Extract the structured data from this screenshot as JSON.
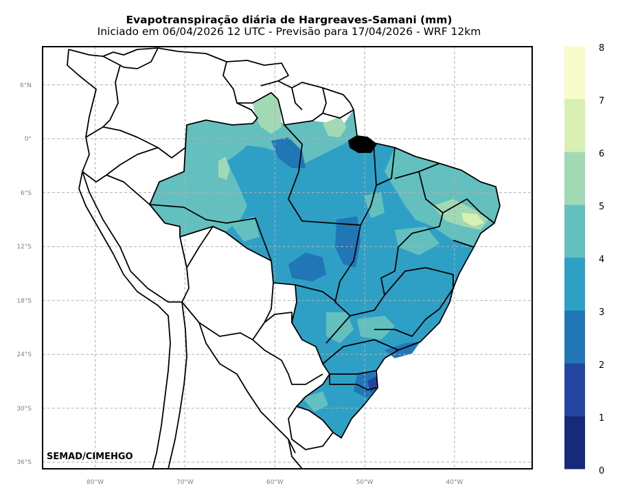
{
  "header": {
    "title": "Evapotranspiração diária de Hargreaves-Samani (mm)",
    "subtitle": "Iniciado em 06/04/2026 12 UTC - Previsão para 17/04/2026 - WRF 12km"
  },
  "map": {
    "lon_range": [
      -86,
      -31.5
    ],
    "lat_range": [
      -37,
      10
    ],
    "lon_ticks": [
      {
        "value": -80,
        "label": "80°W"
      },
      {
        "value": -70,
        "label": "70°W"
      },
      {
        "value": -60,
        "label": "60°W"
      },
      {
        "value": -50,
        "label": "50°W"
      },
      {
        "value": -40,
        "label": "40°W"
      }
    ],
    "lat_ticks": [
      {
        "value": 6,
        "label": "6°N"
      },
      {
        "value": 0,
        "label": "0°"
      },
      {
        "value": -6,
        "label": "6°S"
      },
      {
        "value": -12,
        "label": "12°S"
      },
      {
        "value": -18,
        "label": "18°S"
      },
      {
        "value": -24,
        "label": "24°S"
      },
      {
        "value": -30,
        "label": "30°S"
      },
      {
        "value": -36,
        "label": "36°S"
      }
    ],
    "credit": "SEMAD/CIMEHGO",
    "gridlines": "dashed"
  },
  "colorbar": {
    "levels": [
      "0",
      "1",
      "2",
      "3",
      "4",
      "5",
      "6",
      "7",
      "8"
    ],
    "colors": [
      "#172a7a",
      "#2446a0",
      "#2177b6",
      "#2ea0c6",
      "#63c0bf",
      "#a2d9b5",
      "#d8f0b2",
      "#f8fccc"
    ]
  },
  "colors": {
    "dominant_field": "#2ea0c6",
    "north_field": "#63c0bf",
    "border": "#000000",
    "grid": "#b0b0b0"
  }
}
